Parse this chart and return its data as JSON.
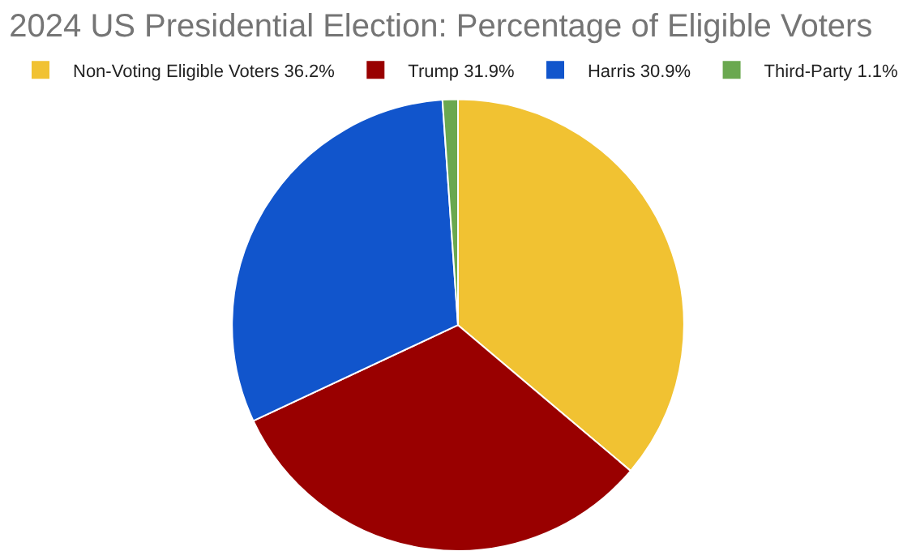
{
  "chart_data": {
    "type": "pie",
    "title": "2024 US Presidential Election: Percentage of Eligible Voters",
    "categories": [
      "Non-Voting Eligible Voters 36.2%",
      "Trump 31.9%",
      "Harris 30.9%",
      "Third-Party 1.1%"
    ],
    "values": [
      36.2,
      31.9,
      30.9,
      1.1
    ],
    "colors": [
      "#f1c232",
      "#990000",
      "#1155cc",
      "#6aa84f"
    ],
    "legend": "top"
  }
}
